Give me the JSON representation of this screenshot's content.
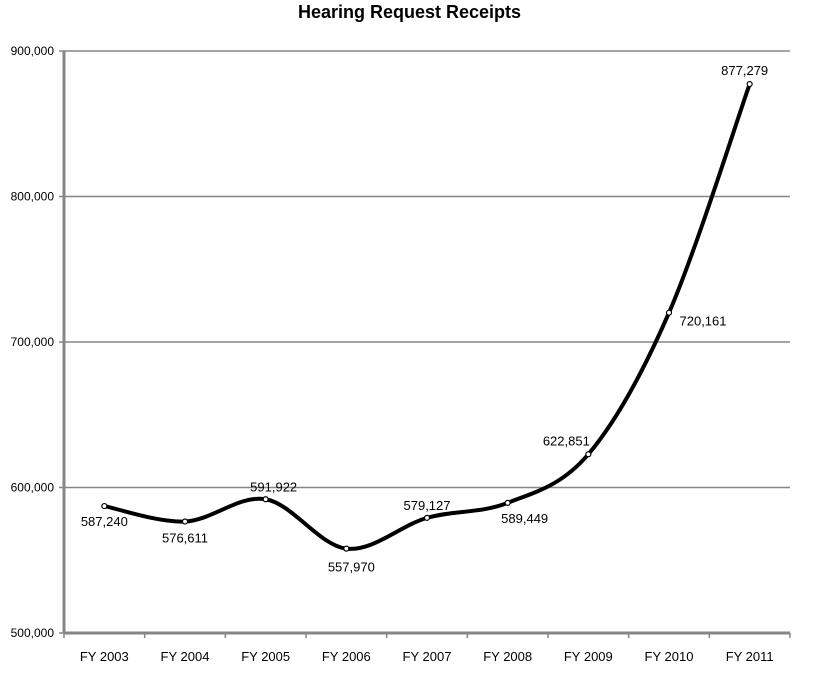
{
  "chart_data": {
    "type": "line",
    "title": "Hearing Request Receipts",
    "xlabel": "",
    "ylabel": "",
    "categories": [
      "FY 2003",
      "FY 2004",
      "FY 2005",
      "FY 2006",
      "FY 2007",
      "FY 2008",
      "FY 2009",
      "FY 2010",
      "FY 2011"
    ],
    "series": [
      {
        "name": "Hearing Request Receipts",
        "values": [
          587240,
          576611,
          591922,
          557970,
          579127,
          589449,
          622851,
          720161,
          877279
        ]
      }
    ],
    "data_labels": [
      "587,240",
      "576,611",
      "591,922",
      "557,970",
      "579,127",
      "589,449",
      "622,851",
      "720,161",
      "877,279"
    ],
    "ylim": [
      500000,
      900000
    ],
    "yticks": [
      500000,
      600000,
      700000,
      800000,
      900000
    ],
    "ytick_labels": [
      "500,000",
      "600,000",
      "700,000",
      "800,000",
      "900,000"
    ],
    "grid": true,
    "legend": "none",
    "line_color": "#000000",
    "grid_color": "#868686"
  }
}
